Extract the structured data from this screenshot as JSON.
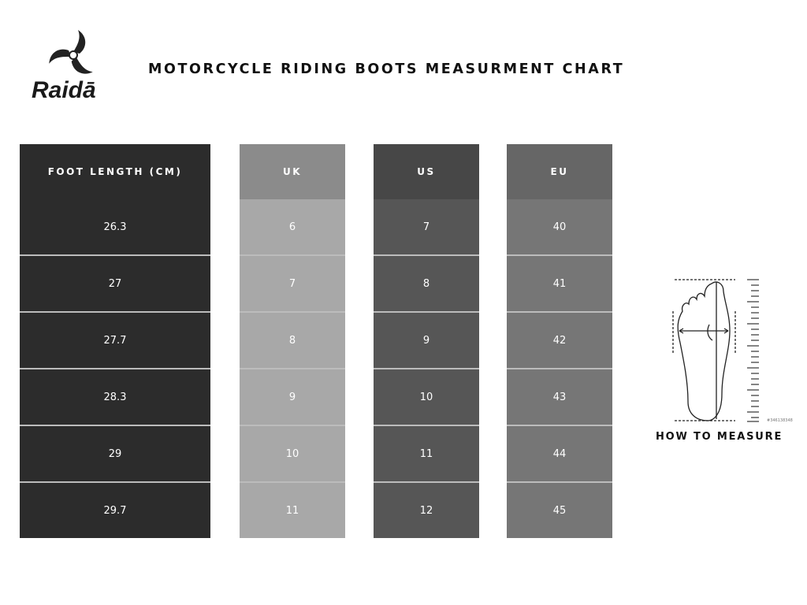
{
  "brand": {
    "name": "Raidā",
    "logo_icon": "tri-blade-swirl-logo"
  },
  "title": "MOTORCYCLE RIDING BOOTS MEASURMENT CHART",
  "table": {
    "columns": [
      {
        "header": "FOOT LENGTH (CM)",
        "values": [
          "26.3",
          "27",
          "27.7",
          "28.3",
          "29",
          "29.7"
        ]
      },
      {
        "header": "UK",
        "values": [
          "6",
          "7",
          "8",
          "9",
          "10",
          "11"
        ]
      },
      {
        "header": "US",
        "values": [
          "7",
          "8",
          "9",
          "10",
          "11",
          "12"
        ]
      },
      {
        "header": "EU",
        "values": [
          "40",
          "41",
          "42",
          "43",
          "44",
          "45"
        ]
      }
    ]
  },
  "measure": {
    "label": "HOW TO MEASURE",
    "icon": "foot-measurement-diagram",
    "image_id": "#346138348"
  },
  "colors": {
    "foot_column": "#2c2c2c",
    "uk_header": "#8b8b8b",
    "uk_cells": "#a8a8a8",
    "us_header": "#474747",
    "us_cells": "#565656",
    "eu_header": "#666666",
    "eu_cells": "#767676"
  }
}
